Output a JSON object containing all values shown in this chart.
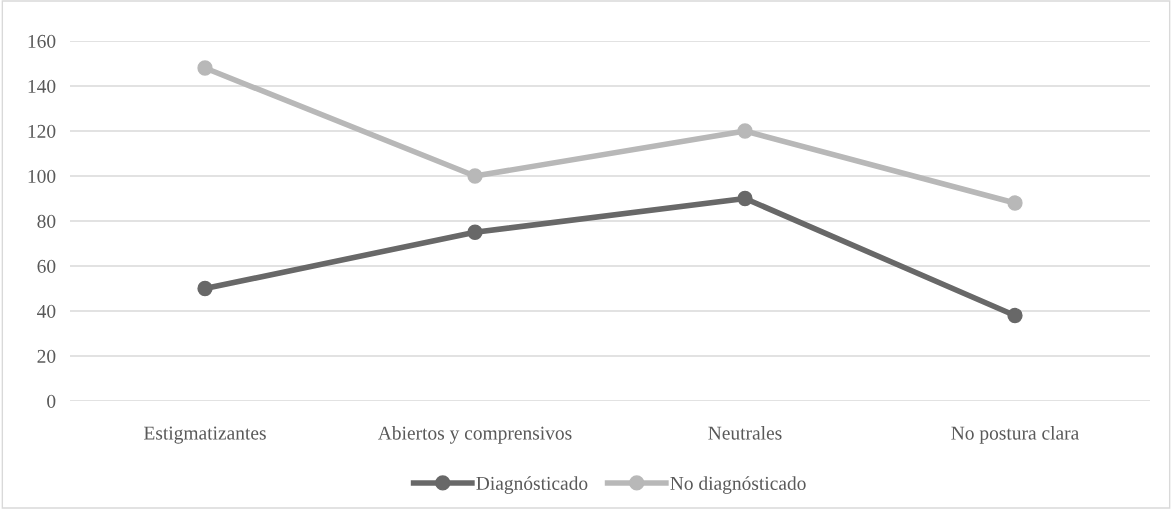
{
  "chart_data": {
    "type": "line",
    "categories": [
      "Estigmatizantes",
      "Abiertos y comprensivos",
      "Neutrales",
      "No postura clara"
    ],
    "series": [
      {
        "name": "Diagnósticado",
        "color": "#686868",
        "values": [
          50,
          75,
          90,
          38
        ]
      },
      {
        "name": "No diagnósticado",
        "color": "#b8b8b8",
        "values": [
          148,
          100,
          120,
          88
        ]
      }
    ],
    "ylim": [
      0,
      160
    ],
    "yticks": [
      0,
      20,
      40,
      60,
      80,
      100,
      120,
      140,
      160
    ],
    "grid": "y",
    "legend": "bottom",
    "marker": "circle",
    "line_style": "solid"
  }
}
